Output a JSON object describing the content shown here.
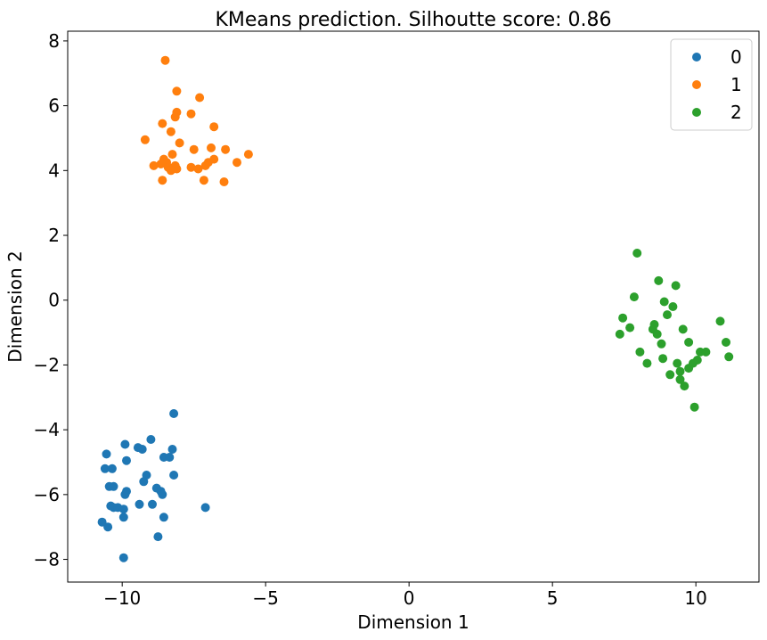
{
  "chart_data": {
    "type": "scatter",
    "title": "KMeans prediction. Silhoutte score: 0.86",
    "xlabel": "Dimension 1",
    "ylabel": "Dimension 2",
    "xlim": [
      -11.9,
      12.2
    ],
    "ylim": [
      -8.7,
      8.3
    ],
    "xticks": [
      -10,
      -5,
      0,
      5,
      10
    ],
    "xtick_labels": [
      "−10",
      "−5",
      "0",
      "5",
      "10"
    ],
    "yticks": [
      -8,
      -6,
      -4,
      -2,
      0,
      2,
      4,
      6,
      8
    ],
    "ytick_labels": [
      "−8",
      "−6",
      "−4",
      "−2",
      "0",
      "2",
      "4",
      "6",
      "8"
    ],
    "grid": false,
    "legend_position": "top-right",
    "series": [
      {
        "name": "0",
        "color": "#1f77b4",
        "points": [
          [
            -8.2,
            -3.5
          ],
          [
            -9.0,
            -4.3
          ],
          [
            -9.9,
            -4.45
          ],
          [
            -9.45,
            -4.55
          ],
          [
            -9.3,
            -4.6
          ],
          [
            -8.25,
            -4.6
          ],
          [
            -9.85,
            -4.95
          ],
          [
            -10.55,
            -4.75
          ],
          [
            -8.55,
            -4.85
          ],
          [
            -8.35,
            -4.85
          ],
          [
            -10.6,
            -5.2
          ],
          [
            -10.35,
            -5.2
          ],
          [
            -9.15,
            -5.4
          ],
          [
            -8.2,
            -5.4
          ],
          [
            -9.25,
            -5.6
          ],
          [
            -10.45,
            -5.75
          ],
          [
            -10.3,
            -5.75
          ],
          [
            -9.85,
            -5.9
          ],
          [
            -9.9,
            -6.0
          ],
          [
            -8.8,
            -5.8
          ],
          [
            -8.65,
            -5.9
          ],
          [
            -8.6,
            -6.0
          ],
          [
            -9.4,
            -6.3
          ],
          [
            -8.95,
            -6.3
          ],
          [
            -10.4,
            -6.35
          ],
          [
            -10.3,
            -6.4
          ],
          [
            -10.15,
            -6.4
          ],
          [
            -9.95,
            -6.45
          ],
          [
            -7.1,
            -6.4
          ],
          [
            -9.95,
            -6.7
          ],
          [
            -8.55,
            -6.7
          ],
          [
            -10.7,
            -6.85
          ],
          [
            -10.5,
            -7.0
          ],
          [
            -8.75,
            -7.3
          ],
          [
            -9.95,
            -7.95
          ]
        ]
      },
      {
        "name": "1",
        "color": "#ff7f0e",
        "points": [
          [
            -8.5,
            7.4
          ],
          [
            -8.1,
            6.45
          ],
          [
            -7.3,
            6.25
          ],
          [
            -8.1,
            5.8
          ],
          [
            -8.15,
            5.65
          ],
          [
            -7.6,
            5.75
          ],
          [
            -8.6,
            5.45
          ],
          [
            -6.8,
            5.35
          ],
          [
            -8.3,
            5.2
          ],
          [
            -9.2,
            4.95
          ],
          [
            -8.0,
            4.85
          ],
          [
            -7.5,
            4.65
          ],
          [
            -6.9,
            4.7
          ],
          [
            -6.4,
            4.65
          ],
          [
            -5.6,
            4.5
          ],
          [
            -8.25,
            4.5
          ],
          [
            -8.55,
            4.35
          ],
          [
            -8.45,
            4.25
          ],
          [
            -6.8,
            4.35
          ],
          [
            -7.0,
            4.25
          ],
          [
            -8.65,
            4.2
          ],
          [
            -8.9,
            4.15
          ],
          [
            -8.4,
            4.1
          ],
          [
            -8.15,
            4.15
          ],
          [
            -8.1,
            4.05
          ],
          [
            -8.3,
            4.0
          ],
          [
            -7.6,
            4.1
          ],
          [
            -7.35,
            4.05
          ],
          [
            -7.1,
            4.15
          ],
          [
            -6.0,
            4.25
          ],
          [
            -8.6,
            3.7
          ],
          [
            -7.15,
            3.7
          ],
          [
            -6.45,
            3.65
          ]
        ]
      },
      {
        "name": "2",
        "color": "#2ca02c",
        "points": [
          [
            7.95,
            1.45
          ],
          [
            8.7,
            0.6
          ],
          [
            9.3,
            0.45
          ],
          [
            7.85,
            0.1
          ],
          [
            8.9,
            -0.05
          ],
          [
            9.2,
            -0.2
          ],
          [
            9.0,
            -0.45
          ],
          [
            7.45,
            -0.55
          ],
          [
            10.85,
            -0.65
          ],
          [
            7.7,
            -0.85
          ],
          [
            8.55,
            -0.75
          ],
          [
            8.5,
            -0.9
          ],
          [
            9.55,
            -0.9
          ],
          [
            8.65,
            -1.05
          ],
          [
            7.35,
            -1.05
          ],
          [
            9.75,
            -1.3
          ],
          [
            8.8,
            -1.35
          ],
          [
            11.05,
            -1.3
          ],
          [
            8.05,
            -1.6
          ],
          [
            10.15,
            -1.6
          ],
          [
            10.35,
            -1.6
          ],
          [
            8.85,
            -1.8
          ],
          [
            11.15,
            -1.75
          ],
          [
            10.05,
            -1.85
          ],
          [
            8.3,
            -1.95
          ],
          [
            9.35,
            -1.95
          ],
          [
            9.9,
            -1.95
          ],
          [
            9.75,
            -2.1
          ],
          [
            9.45,
            -2.2
          ],
          [
            9.1,
            -2.3
          ],
          [
            9.45,
            -2.45
          ],
          [
            9.6,
            -2.65
          ],
          [
            9.95,
            -3.3
          ]
        ]
      }
    ]
  }
}
